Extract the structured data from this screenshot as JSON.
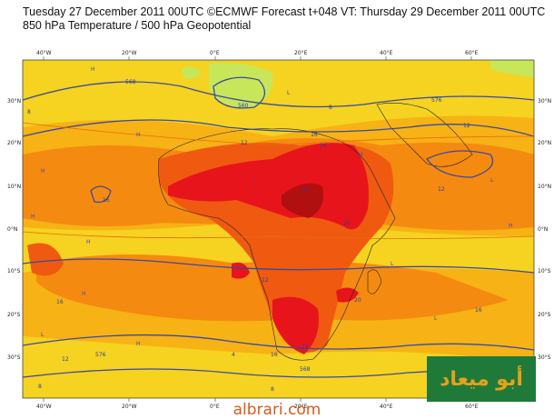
{
  "header": {
    "line1": "Tuesday 27 December 2011 00UTC ©ECMWF Forecast t+048 VT: Thursday 29 December 2011 00UTC",
    "line2": "850 hPa Temperature / 500 hPa Geopotential"
  },
  "axes": {
    "lon_top": [
      "40°W",
      "20°W",
      "0°E",
      "20°E",
      "40°E",
      "60°E"
    ],
    "lon_bottom": [
      "40°W",
      "20°W",
      "0°E",
      "20°E",
      "40°E",
      "60°E"
    ],
    "lat_left": [
      "30°N",
      "20°N",
      "10°N",
      "0°N",
      "10°S",
      "20°S",
      "30°S"
    ],
    "lat_right": [
      "30°N",
      "20°N",
      "10°N",
      "0°N",
      "10°S",
      "20°S",
      "30°S"
    ]
  },
  "contour_labels": [
    "568",
    "560",
    "576",
    "12",
    "8",
    "16",
    "12",
    "16",
    "24",
    "16",
    "20",
    "16",
    "20",
    "12",
    "24",
    "576",
    "568",
    "8",
    "12",
    "8",
    "4",
    "16",
    "16",
    "12",
    "8"
  ],
  "pressure_marks": [
    "H",
    "H",
    "H",
    "L",
    "H",
    "L",
    "H",
    "H",
    "L",
    "L",
    "H",
    "H",
    "L",
    "H",
    "L"
  ],
  "colors": {
    "ocean_yellow": "#f5d320",
    "light_orange": "#f7b215",
    "orange": "#f58a10",
    "dark_orange": "#ef5a10",
    "red": "#e8141c",
    "dark_red": "#b01010",
    "green_cold": "#c8e65a",
    "contour_blue": "#3a4aa0"
  },
  "watermark": {
    "logo_text": "أبو ميعاد",
    "site": "albrari.com"
  }
}
